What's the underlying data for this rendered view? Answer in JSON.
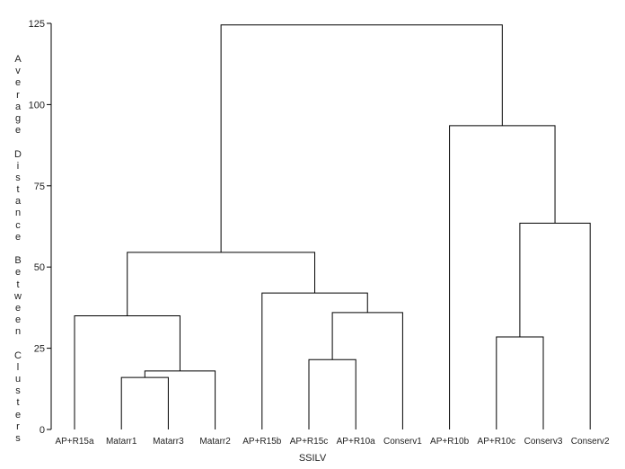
{
  "chart_data": {
    "type": "dendrogram",
    "ylabel": "Average Distance Between Clusters",
    "xlabel": "SSILV",
    "ylim": [
      0,
      125
    ],
    "yticks": [
      0,
      25,
      50,
      75,
      100,
      125
    ],
    "grid": false,
    "leaves": [
      "AP+R15a",
      "Matarr1",
      "Matarr3",
      "Matarr2",
      "AP+R15b",
      "AP+R15c",
      "AP+R10a",
      "Conserv1",
      "AP+R10b",
      "AP+R10c",
      "Conserv3",
      "Conserv2"
    ],
    "merges": [
      {
        "left": 1,
        "right": 2,
        "height": 16
      },
      {
        "left": "m0",
        "right": 3,
        "height": 18
      },
      {
        "left": 0,
        "right": "m1",
        "height": 35
      },
      {
        "left": 5,
        "right": 6,
        "height": 21.5
      },
      {
        "left": "m3",
        "right": 7,
        "height": 36
      },
      {
        "left": 4,
        "right": "m4",
        "height": 42
      },
      {
        "left": "m2",
        "right": "m5",
        "height": 54.5
      },
      {
        "left": 9,
        "right": 10,
        "height": 28.5
      },
      {
        "left": "m7",
        "right": 11,
        "height": 63.5
      },
      {
        "left": 8,
        "right": "m8",
        "height": 93.5
      },
      {
        "left": "m6",
        "right": "m9",
        "height": 124.5
      }
    ]
  }
}
